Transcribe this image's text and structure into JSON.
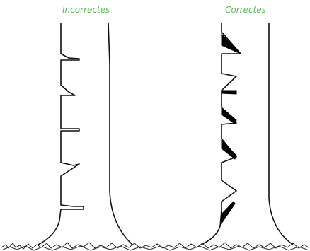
{
  "labels": {
    "incorrect": "Incorrectes",
    "correct": "Correctes"
  },
  "colors": {
    "label": "#5cb85c",
    "line": "#111111",
    "fill": "#000000",
    "background": "#ffffff"
  }
}
